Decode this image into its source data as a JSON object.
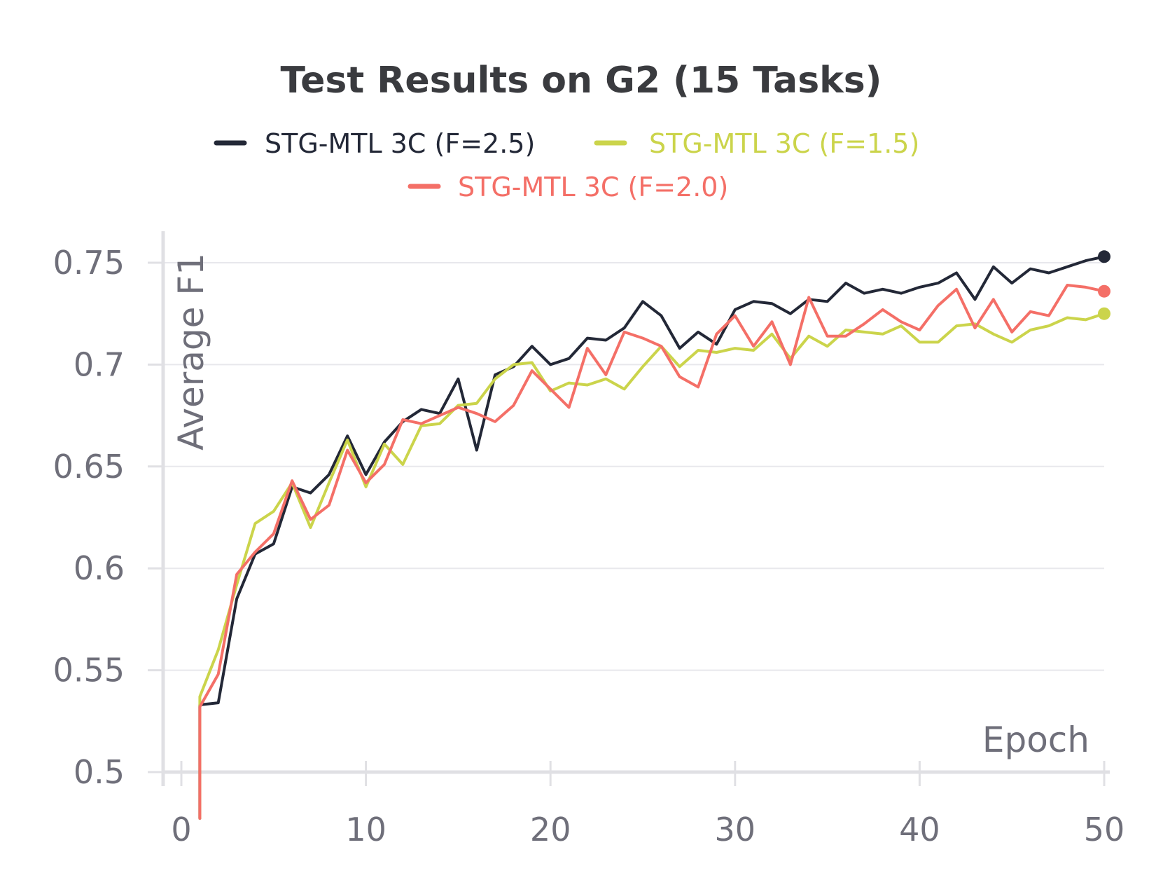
{
  "chart_data": {
    "type": "line",
    "title": "Test Results on G2 (15 Tasks)",
    "xlabel": "Epoch",
    "ylabel": "Average F1",
    "xlim": [
      0,
      50
    ],
    "ylim": [
      0.5,
      0.76
    ],
    "xticks": [
      0,
      10,
      20,
      30,
      40,
      50
    ],
    "yticks": [
      0.5,
      0.55,
      0.6,
      0.65,
      0.7,
      0.75
    ],
    "ytick_labels": [
      "0.5",
      "0.55",
      "0.6",
      "0.65",
      "0.7",
      "0.75"
    ],
    "grid": true,
    "legend_position": "top",
    "series": [
      {
        "name": "STG-MTL 3C (F=2.5)",
        "color": "#232837",
        "x": [
          1,
          2,
          3,
          4,
          5,
          6,
          7,
          8,
          9,
          10,
          11,
          12,
          13,
          14,
          15,
          16,
          17,
          18,
          19,
          20,
          21,
          22,
          23,
          24,
          25,
          26,
          27,
          28,
          29,
          30,
          31,
          32,
          33,
          34,
          35,
          36,
          37,
          38,
          39,
          40,
          41,
          42,
          43,
          44,
          45,
          46,
          47,
          48,
          49,
          50
        ],
        "y": [
          0.533,
          0.534,
          0.585,
          0.607,
          0.612,
          0.64,
          0.637,
          0.646,
          0.665,
          0.646,
          0.662,
          0.672,
          0.678,
          0.676,
          0.693,
          0.658,
          0.695,
          0.699,
          0.709,
          0.7,
          0.703,
          0.713,
          0.712,
          0.718,
          0.731,
          0.724,
          0.708,
          0.716,
          0.71,
          0.727,
          0.731,
          0.73,
          0.725,
          0.732,
          0.731,
          0.74,
          0.735,
          0.737,
          0.735,
          0.738,
          0.74,
          0.745,
          0.732,
          0.748,
          0.74,
          0.747,
          0.745,
          0.748,
          0.751,
          0.753
        ]
      },
      {
        "name": "STG-MTL 3C (F=1.5)",
        "color": "#cbd44b",
        "x": [
          1,
          2,
          3,
          4,
          5,
          6,
          7,
          8,
          9,
          10,
          11,
          12,
          13,
          14,
          15,
          16,
          17,
          18,
          19,
          20,
          21,
          22,
          23,
          24,
          25,
          26,
          27,
          28,
          29,
          30,
          31,
          32,
          33,
          34,
          35,
          36,
          37,
          38,
          39,
          40,
          41,
          42,
          43,
          44,
          45,
          46,
          47,
          48,
          49,
          50
        ],
        "y": [
          0.537,
          0.56,
          0.592,
          0.622,
          0.628,
          0.642,
          0.62,
          0.642,
          0.663,
          0.64,
          0.661,
          0.651,
          0.67,
          0.671,
          0.68,
          0.681,
          0.693,
          0.7,
          0.701,
          0.687,
          0.691,
          0.69,
          0.693,
          0.688,
          0.699,
          0.709,
          0.699,
          0.707,
          0.706,
          0.708,
          0.707,
          0.715,
          0.703,
          0.714,
          0.709,
          0.717,
          0.716,
          0.715,
          0.719,
          0.711,
          0.711,
          0.719,
          0.72,
          0.715,
          0.711,
          0.717,
          0.719,
          0.723,
          0.722,
          0.725
        ]
      },
      {
        "name": "STG-MTL 3C (F=2.0)",
        "color": "#f46f67",
        "x": [
          1,
          2,
          3,
          4,
          5,
          6,
          7,
          8,
          9,
          10,
          11,
          12,
          13,
          14,
          15,
          16,
          17,
          18,
          19,
          20,
          21,
          22,
          23,
          24,
          25,
          26,
          27,
          28,
          29,
          30,
          31,
          32,
          33,
          34,
          35,
          36,
          37,
          38,
          39,
          40,
          41,
          42,
          43,
          44,
          45,
          46,
          47,
          48,
          49,
          50
        ],
        "y": [
          0.532,
          0.548,
          0.597,
          0.608,
          0.617,
          0.643,
          0.624,
          0.631,
          0.658,
          0.642,
          0.651,
          0.673,
          0.671,
          0.675,
          0.679,
          0.676,
          0.672,
          0.68,
          0.697,
          0.688,
          0.679,
          0.708,
          0.695,
          0.716,
          0.713,
          0.709,
          0.694,
          0.689,
          0.715,
          0.724,
          0.709,
          0.721,
          0.7,
          0.733,
          0.714,
          0.714,
          0.72,
          0.727,
          0.721,
          0.717,
          0.729,
          0.737,
          0.718,
          0.732,
          0.716,
          0.726,
          0.724,
          0.739,
          0.738,
          0.736
        ]
      }
    ]
  }
}
